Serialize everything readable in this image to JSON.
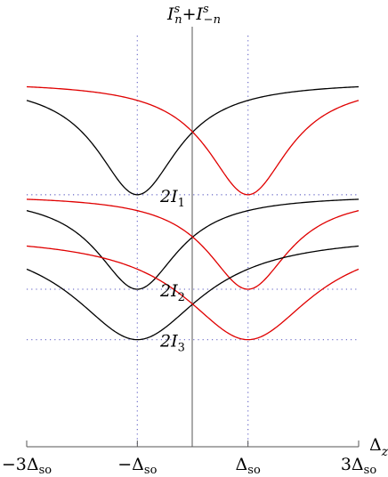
{
  "chart_data": {
    "type": "line",
    "title": {
      "main": "I",
      "sub1": "n",
      "sup1": "s",
      "mid": "+I",
      "sub2": "−n",
      "sup2": "s"
    },
    "xlabel": {
      "main": "Δ",
      "sub": "z"
    },
    "xlim": [
      -3,
      3
    ],
    "ylim": [
      0,
      1
    ],
    "x_ticks": [
      {
        "value": -3,
        "pre": "−3Δ",
        "sub": "so"
      },
      {
        "value": -1,
        "pre": "−Δ",
        "sub": "so"
      },
      {
        "value": 1,
        "pre": "Δ",
        "sub": "so"
      },
      {
        "value": 3,
        "pre": "3Δ",
        "sub": "so"
      }
    ],
    "levels": [
      {
        "y": 0.6,
        "pre": "2I",
        "sub": "1"
      },
      {
        "y": 0.375,
        "pre": "2I",
        "sub": "2"
      },
      {
        "y": 0.255,
        "pre": "2I",
        "sub": "3"
      }
    ],
    "colors": {
      "black_series": "#000000",
      "red_series": "#e00000",
      "guide": "#7777cc",
      "axis": "#555555"
    },
    "series": [
      {
        "group": 1,
        "color": "black",
        "center": -1,
        "min": 0.6,
        "max": 0.87,
        "width": 0.9
      },
      {
        "group": 1,
        "color": "red",
        "center": 1,
        "min": 0.6,
        "max": 0.87,
        "width": 0.9
      },
      {
        "group": 2,
        "color": "black",
        "center": -1,
        "min": 0.375,
        "max": 0.6,
        "width": 0.9
      },
      {
        "group": 2,
        "color": "red",
        "center": 1,
        "min": 0.375,
        "max": 0.6,
        "width": 0.9
      },
      {
        "group": 3,
        "color": "black",
        "center": -1,
        "min": 0.255,
        "max": 0.505,
        "width": 1.4
      },
      {
        "group": 3,
        "color": "red",
        "center": 1,
        "min": 0.255,
        "max": 0.505,
        "width": 1.4
      }
    ]
  }
}
